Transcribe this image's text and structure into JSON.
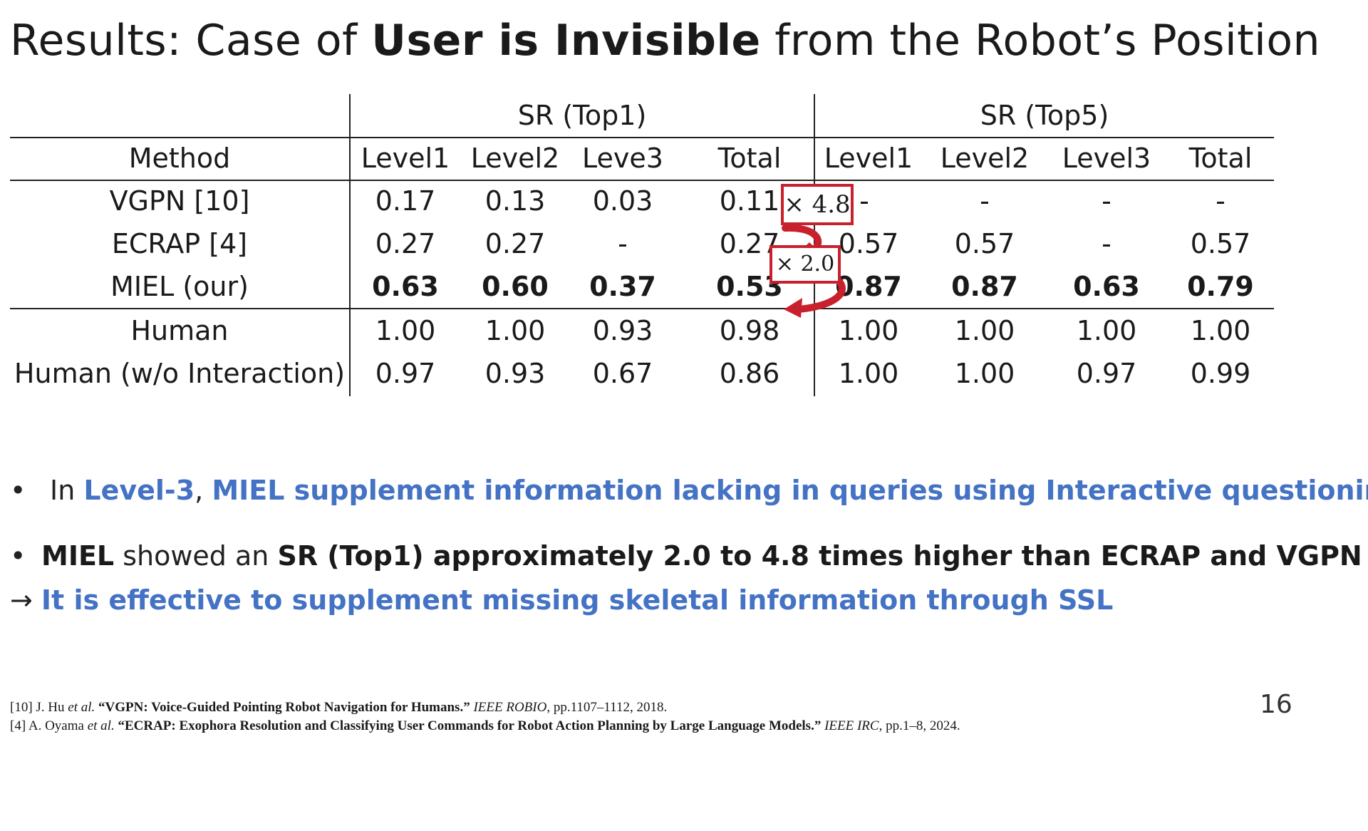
{
  "title": {
    "prefix": "Results: Case of ",
    "emphasis": "User is Invisible",
    "suffix": " from the Robot’s Position"
  },
  "table": {
    "group_headers": [
      "SR (Top1)",
      "SR (Top5)"
    ],
    "column_headers": [
      "Method",
      "Level1",
      "Level2",
      "Leve3",
      "Total",
      "Level1",
      "Level2",
      "Level3",
      "Total"
    ],
    "rows": [
      {
        "method": "VGPN [10]",
        "values": [
          "0.17",
          "0.13",
          "0.03",
          "0.11",
          "-",
          "-",
          "-",
          "-"
        ],
        "bold": false
      },
      {
        "method": "ECRAP [4]",
        "values": [
          "0.27",
          "0.27",
          "-",
          "0.27",
          "0.57",
          "0.57",
          "-",
          "0.57"
        ],
        "bold": false
      },
      {
        "method": "MIEL (our)",
        "values": [
          "0.63",
          "0.60",
          "0.37",
          "0.53",
          "0.87",
          "0.87",
          "0.63",
          "0.79"
        ],
        "bold": true
      },
      {
        "method": "Human",
        "values": [
          "1.00",
          "1.00",
          "0.93",
          "0.98",
          "1.00",
          "1.00",
          "1.00",
          "1.00"
        ],
        "bold": false
      },
      {
        "method": "Human (w/o Interaction)",
        "values": [
          "0.97",
          "0.93",
          "0.67",
          "0.86",
          "1.00",
          "1.00",
          "0.97",
          "0.99"
        ],
        "bold": false
      }
    ]
  },
  "annotations": {
    "callout_1": "× 4.8",
    "callout_2": "× 2.0",
    "accent_color": "#c8202c"
  },
  "bullets": {
    "b1": {
      "dot": "•",
      "pre": "In ",
      "level": "Level-3",
      "comma": ", ",
      "rest": "MIEL supplement information lacking in queries using Interactive questioning"
    },
    "b2": {
      "dot": "•",
      "miel": "MIEL",
      "mid": " showed an ",
      "rest": "SR (Top1) approximately 2.0 to 4.8 times higher than ECRAP and VGPN"
    },
    "b3": {
      "arrow": "→ ",
      "text": "It is effective to supplement missing skeletal information through SSL"
    },
    "highlight_color": "#4472c4"
  },
  "references": {
    "r1": {
      "pre": "[10] J. Hu ",
      "etal": "et al.",
      "title": " “VGPN: Voice-Guided Pointing Robot Navigation for Humans.”",
      "venue": " IEEE ROBIO",
      "post": ", pp.1107–1112, 2018."
    },
    "r2": {
      "pre": "[4] A. Oyama ",
      "etal": "et al.",
      "title": " “ECRAP: Exophora Resolution and Classifying User Commands for Robot Action Planning by Large Language Models.”",
      "venue": " IEEE IRC",
      "post": ", pp.1–8, 2024."
    }
  },
  "page_number": "16"
}
